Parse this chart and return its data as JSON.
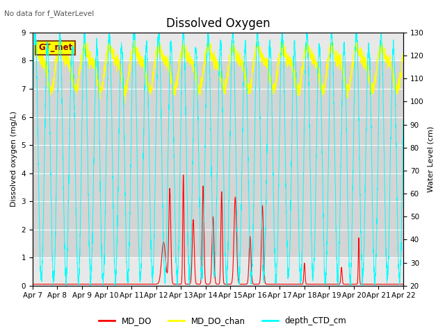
{
  "title": "Dissolved Oxygen",
  "top_left_text": "No data for f_WaterLevel",
  "ylabel_left": "Dissolved oxygen (mg/L)",
  "ylabel_right": "Water Level (cm)",
  "ylim_left": [
    0.0,
    9.0
  ],
  "ylim_right": [
    20,
    130
  ],
  "box_label": "GT_met",
  "x_tick_labels": [
    "Apr 7",
    "Apr 8",
    "Apr 9",
    "Apr 10",
    "Apr 11",
    "Apr 12",
    "Apr 13",
    "Apr 14",
    "Apr 15",
    "Apr 16",
    "Apr 17",
    "Apr 18",
    "Apr 19",
    "Apr 20",
    "Apr 21",
    "Apr 22"
  ],
  "legend_entries": [
    "MD_DO",
    "MD_DO_chan",
    "depth_CTD_cm"
  ],
  "legend_colors": [
    "#cc0000",
    "#ffff00",
    "#00ccff"
  ],
  "bg_color": "#e8e8e8",
  "band_low": 1.0,
  "band_high": 8.0,
  "band_color": "#d4d4d4",
  "title_fontsize": 12,
  "label_fontsize": 8,
  "tick_fontsize": 7.5,
  "fig_width": 6.4,
  "fig_height": 4.8,
  "dpi": 100
}
